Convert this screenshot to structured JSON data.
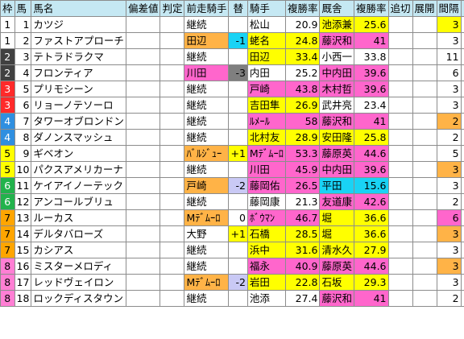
{
  "header": {
    "waku": "枠",
    "uma": "馬",
    "name": "馬名",
    "hensa": "偏差値",
    "hantei": "判定",
    "prev_jockey": "前走騎手",
    "kae": "替",
    "jockey": "騎手",
    "jockey_rate": "複勝率",
    "trainer": "厩舎",
    "trainer_rate": "複勝率",
    "oikiri": "追切",
    "tenkai": "展開",
    "interval": "間隔",
    "arrow": "↑"
  },
  "colors": {
    "header_bg": "#c5e8f3",
    "pink": "#ff66cc",
    "orange": "#ffb347",
    "green": "#33cc66",
    "yellow": "#ffff00",
    "cyan": "#19d3f5",
    "lavender": "#c9c9f5",
    "waku_1": "#ffffff",
    "waku_2": "#404040",
    "waku_3": "#ff2a2a",
    "waku_4": "#2f8fe0",
    "waku_5": "#ffff00",
    "waku_6": "#22b24c",
    "waku_7": "#ffa500",
    "waku_8": "#ff7fd4"
  },
  "rows": [
    {
      "waku": "1",
      "uma": "1",
      "name": "カツジ",
      "prev": "継続",
      "prev_bg": "",
      "kae": "",
      "kae_bg": "",
      "jockey": "松山",
      "jockey_bg": "",
      "jrate": "20.9",
      "jrate_bg": "",
      "trainer": "池添兼",
      "trainer_bg": "yellow",
      "trate": "25.6",
      "trate_bg": "yellow",
      "interval": "3",
      "interval_bg": "yellow"
    },
    {
      "waku": "1",
      "uma": "2",
      "name": "ファストアプローチ",
      "prev": "田辺",
      "prev_bg": "orange",
      "kae": "-1",
      "kae_bg": "cyan",
      "jockey": "蛯名",
      "jockey_bg": "yellow",
      "jrate": "24.8",
      "jrate_bg": "yellow",
      "trainer": "藤沢和",
      "trainer_bg": "pink",
      "trate": "41",
      "trate_bg": "pink",
      "interval": "3",
      "interval_bg": ""
    },
    {
      "waku": "2",
      "uma": "3",
      "name": "テトラドラクマ",
      "prev": "継続",
      "prev_bg": "",
      "kae": "",
      "kae_bg": "",
      "jockey": "田辺",
      "jockey_bg": "yellow",
      "jrate": "33.4",
      "jrate_bg": "yellow",
      "trainer": "小西一",
      "trainer_bg": "",
      "trate": "33.8",
      "trate_bg": "",
      "interval": "11",
      "interval_bg": ""
    },
    {
      "waku": "2",
      "uma": "4",
      "name": "フロンティア",
      "prev": "川田",
      "prev_bg": "pink",
      "kae": "-3",
      "kae_bg": "gray",
      "jockey": "内田",
      "jockey_bg": "",
      "jrate": "25.2",
      "jrate_bg": "",
      "trainer": "中内田",
      "trainer_bg": "pink",
      "trate": "39.6",
      "trate_bg": "pink",
      "interval": "6",
      "interval_bg": ""
    },
    {
      "waku": "3",
      "uma": "5",
      "name": "プリモシーン",
      "prev": "継続",
      "prev_bg": "",
      "kae": "",
      "kae_bg": "",
      "jockey": "戸崎",
      "jockey_bg": "pink",
      "jrate": "43.8",
      "jrate_bg": "pink",
      "trainer": "木村哲",
      "trainer_bg": "pink",
      "trate": "39.6",
      "trate_bg": "pink",
      "interval": "3",
      "interval_bg": ""
    },
    {
      "waku": "3",
      "uma": "6",
      "name": "リョーノテソーロ",
      "prev": "継続",
      "prev_bg": "",
      "kae": "",
      "kae_bg": "",
      "jockey": "吉田隼",
      "jockey_bg": "yellow",
      "jrate": "26.9",
      "jrate_bg": "yellow",
      "trainer": "武井亮",
      "trainer_bg": "",
      "trate": "23.4",
      "trate_bg": "",
      "interval": "3",
      "interval_bg": ""
    },
    {
      "waku": "4",
      "uma": "7",
      "name": "タワーオブロンドン",
      "prev": "継続",
      "prev_bg": "",
      "kae": "",
      "kae_bg": "",
      "jockey": "ﾙﾒｰﾙ",
      "jockey_bg": "pink",
      "jrate": "58",
      "jrate_bg": "pink",
      "trainer": "藤沢和",
      "trainer_bg": "pink",
      "trate": "41",
      "trate_bg": "pink",
      "interval": "2",
      "interval_bg": "orange"
    },
    {
      "waku": "4",
      "uma": "8",
      "name": "ダノンスマッシュ",
      "prev": "継続",
      "prev_bg": "",
      "kae": "",
      "kae_bg": "",
      "jockey": "北村友",
      "jockey_bg": "yellow",
      "jrate": "28.9",
      "jrate_bg": "yellow",
      "trainer": "安田隆",
      "trainer_bg": "yellow",
      "trate": "25.8",
      "trate_bg": "yellow",
      "interval": "2",
      "interval_bg": ""
    },
    {
      "waku": "5",
      "uma": "9",
      "name": "ギベオン",
      "prev": "ﾊﾞﾙｼﾞｭｰ",
      "prev_bg": "orange",
      "kae": "+1",
      "kae_bg": "yellow",
      "jockey": "Mﾃﾞﾑｰﾛ",
      "jockey_bg": "pink",
      "jrate": "53.3",
      "jrate_bg": "pink",
      "trainer": "藤原英",
      "trainer_bg": "pink",
      "trate": "44.6",
      "trate_bg": "pink",
      "interval": "5",
      "interval_bg": ""
    },
    {
      "waku": "5",
      "uma": "10",
      "name": "パクスアメリカーナ",
      "prev": "継続",
      "prev_bg": "",
      "kae": "",
      "kae_bg": "",
      "jockey": "川田",
      "jockey_bg": "pink",
      "jrate": "45.9",
      "jrate_bg": "pink",
      "trainer": "中内田",
      "trainer_bg": "pink",
      "trate": "39.6",
      "trate_bg": "pink",
      "interval": "3",
      "interval_bg": "orange"
    },
    {
      "waku": "6",
      "uma": "11",
      "name": "ケイアイノーテック",
      "prev": "戸崎",
      "prev_bg": "orange",
      "kae": "-2",
      "kae_bg": "lavender",
      "jockey": "藤岡佑",
      "jockey_bg": "pink",
      "jrate": "26.5",
      "jrate_bg": "pink",
      "trainer": "平田",
      "trainer_bg": "cyan",
      "trate": "15.6",
      "trate_bg": "cyan",
      "interval": "3",
      "interval_bg": ""
    },
    {
      "waku": "6",
      "uma": "12",
      "name": "アンコールブリュ",
      "prev": "継続",
      "prev_bg": "",
      "kae": "",
      "kae_bg": "",
      "jockey": "藤岡康",
      "jockey_bg": "",
      "jrate": "21.3",
      "jrate_bg": "",
      "trainer": "友道康",
      "trainer_bg": "pink",
      "trate": "42.6",
      "trate_bg": "pink",
      "interval": "2",
      "interval_bg": ""
    },
    {
      "waku": "7",
      "uma": "13",
      "name": "ルーカス",
      "prev": "Mﾃﾞﾑｰﾛ",
      "prev_bg": "orange",
      "kae": "0",
      "kae_bg": "",
      "jockey": "ﾎﾞｳﾏﾝ",
      "jockey_bg": "pink",
      "jrate": "46.7",
      "jrate_bg": "pink",
      "trainer": "堀",
      "trainer_bg": "yellow",
      "trate": "36.6",
      "trate_bg": "yellow",
      "interval": "6",
      "interval_bg": "pink"
    },
    {
      "waku": "7",
      "uma": "14",
      "name": "デルタバローズ",
      "prev": "大野",
      "prev_bg": "",
      "kae": "+1",
      "kae_bg": "yellow",
      "jockey": "石橋",
      "jockey_bg": "yellow",
      "jrate": "28.5",
      "jrate_bg": "yellow",
      "trainer": "堀",
      "trainer_bg": "yellow",
      "trate": "36.6",
      "trate_bg": "yellow",
      "interval": "3",
      "interval_bg": "orange"
    },
    {
      "waku": "7",
      "uma": "15",
      "name": "カシアス",
      "prev": "継続",
      "prev_bg": "",
      "kae": "",
      "kae_bg": "",
      "jockey": "浜中",
      "jockey_bg": "yellow",
      "jrate": "31.6",
      "jrate_bg": "yellow",
      "trainer": "清水久",
      "trainer_bg": "yellow",
      "trate": "27.9",
      "trate_bg": "yellow",
      "interval": "3",
      "interval_bg": ""
    },
    {
      "waku": "8",
      "uma": "16",
      "name": "ミスターメロディ",
      "prev": "継続",
      "prev_bg": "",
      "kae": "",
      "kae_bg": "",
      "jockey": "福永",
      "jockey_bg": "pink",
      "jrate": "40.9",
      "jrate_bg": "pink",
      "trainer": "藤原英",
      "trainer_bg": "pink",
      "trate": "44.6",
      "trate_bg": "pink",
      "interval": "3",
      "interval_bg": "orange"
    },
    {
      "waku": "8",
      "uma": "17",
      "name": "レッドヴェイロン",
      "prev": "Mﾃﾞﾑｰﾛ",
      "prev_bg": "orange",
      "kae": "-2",
      "kae_bg": "lavender",
      "jockey": "岩田",
      "jockey_bg": "yellow",
      "jrate": "22.8",
      "jrate_bg": "yellow",
      "trainer": "石坂",
      "trainer_bg": "yellow",
      "trate": "29.3",
      "trate_bg": "yellow",
      "interval": "3",
      "interval_bg": ""
    },
    {
      "waku": "8",
      "uma": "18",
      "name": "ロックディスタウン",
      "prev": "継続",
      "prev_bg": "",
      "kae": "",
      "kae_bg": "",
      "jockey": "池添",
      "jockey_bg": "",
      "jrate": "27.4",
      "jrate_bg": "",
      "trainer": "藤沢和",
      "trainer_bg": "pink",
      "trate": "41",
      "trate_bg": "pink",
      "interval": "2",
      "interval_bg": ""
    }
  ]
}
